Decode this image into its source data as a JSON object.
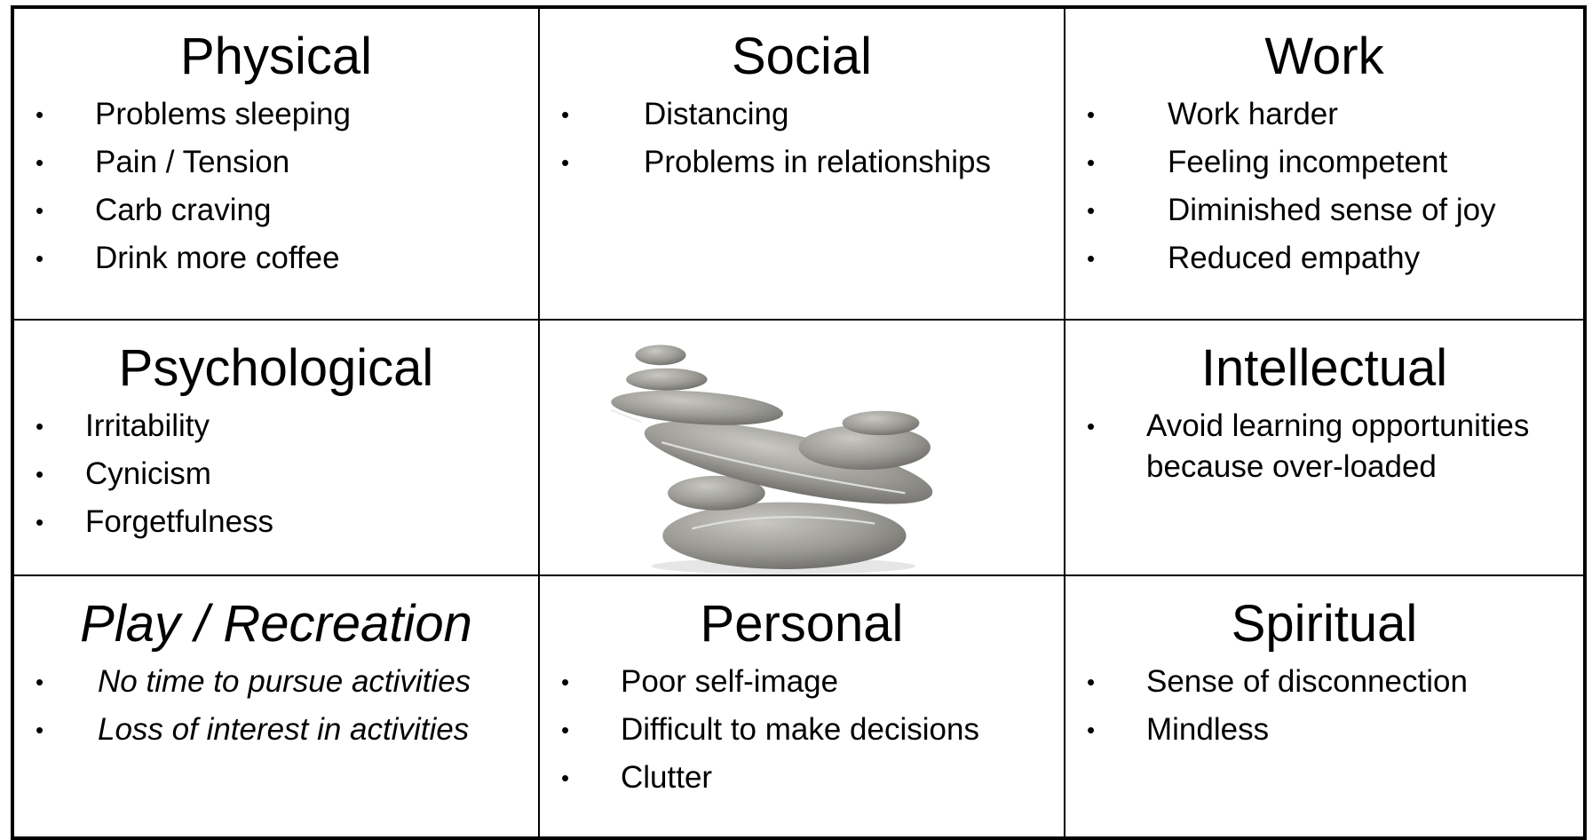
{
  "cells": [
    {
      "title": "Physical",
      "items": [
        "Problems sleeping",
        "Pain / Tension",
        "Carb craving",
        "Drink more coffee"
      ]
    },
    {
      "title": "Social",
      "items": [
        "Distancing",
        "Problems in relationships"
      ]
    },
    {
      "title": "Work",
      "items": [
        "Work harder",
        "Feeling incompetent",
        "Diminished sense of joy",
        "Reduced empathy"
      ]
    },
    {
      "title": "Psychological",
      "items": [
        "Irritability",
        "Cynicism",
        "Forgetfulness"
      ]
    },
    {
      "title": "Intellectual",
      "items": [
        "Avoid learning opportunities because over-loaded"
      ]
    },
    {
      "title": "Play / Recreation",
      "italic": true,
      "items": [
        "No time to pursue activities",
        "Loss of interest in activities"
      ]
    },
    {
      "title": "Personal",
      "items": [
        "Poor self-image",
        "Difficult to make decisions",
        "Clutter"
      ]
    },
    {
      "title": "Spiritual",
      "items": [
        "Sense of disconnection",
        "Mindless"
      ]
    }
  ]
}
